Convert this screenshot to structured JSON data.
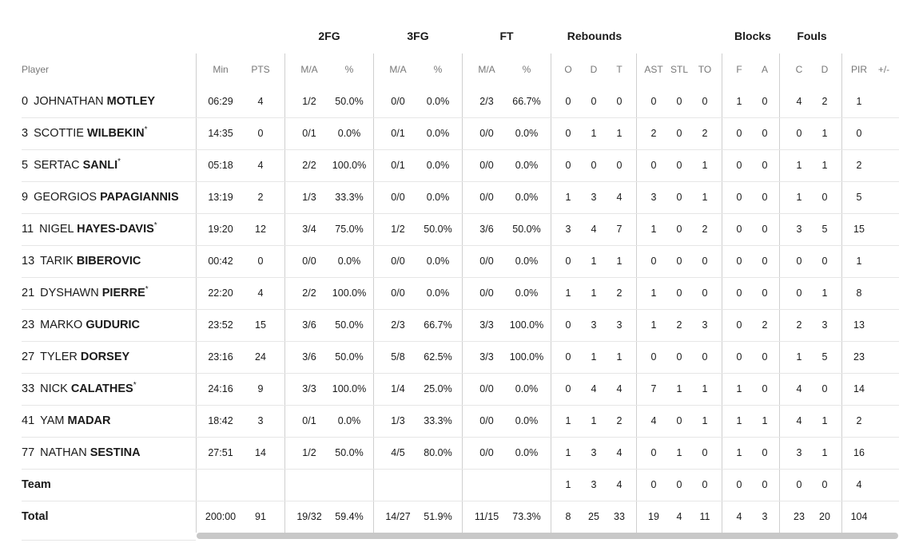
{
  "group_headers": {
    "fg2": "2FG",
    "fg3": "3FG",
    "ft": "FT",
    "rebounds": "Rebounds",
    "blocks": "Blocks",
    "fouls": "Fouls"
  },
  "columns": [
    "Player",
    "Min",
    "PTS",
    "M/A",
    "%",
    "M/A",
    "%",
    "M/A",
    "%",
    "O",
    "D",
    "T",
    "AST",
    "STL",
    "TO",
    "F",
    "A",
    "C",
    "D",
    "PIR",
    "+/-"
  ],
  "players": [
    {
      "num": "0",
      "first": "JOHNATHAN",
      "last": "MOTLEY",
      "star": "",
      "stats": [
        "06:29",
        "4",
        "1/2",
        "50.0%",
        "0/0",
        "0.0%",
        "2/3",
        "66.7%",
        "0",
        "0",
        "0",
        "0",
        "0",
        "0",
        "1",
        "0",
        "4",
        "2",
        "1",
        ""
      ]
    },
    {
      "num": "3",
      "first": "SCOTTIE",
      "last": "WILBEKIN",
      "star": "*",
      "stats": [
        "14:35",
        "0",
        "0/1",
        "0.0%",
        "0/1",
        "0.0%",
        "0/0",
        "0.0%",
        "0",
        "1",
        "1",
        "2",
        "0",
        "2",
        "0",
        "0",
        "0",
        "1",
        "0",
        ""
      ]
    },
    {
      "num": "5",
      "first": "SERTAC",
      "last": "SANLI",
      "star": "*",
      "stats": [
        "05:18",
        "4",
        "2/2",
        "100.0%",
        "0/1",
        "0.0%",
        "0/0",
        "0.0%",
        "0",
        "0",
        "0",
        "0",
        "0",
        "1",
        "0",
        "0",
        "1",
        "1",
        "2",
        ""
      ]
    },
    {
      "num": "9",
      "first": "GEORGIOS",
      "last": "PAPAGIANNIS",
      "star": "",
      "stats": [
        "13:19",
        "2",
        "1/3",
        "33.3%",
        "0/0",
        "0.0%",
        "0/0",
        "0.0%",
        "1",
        "3",
        "4",
        "3",
        "0",
        "1",
        "0",
        "0",
        "1",
        "0",
        "5",
        ""
      ]
    },
    {
      "num": "11",
      "first": "NIGEL",
      "last": "HAYES-DAVIS",
      "star": "*",
      "stats": [
        "19:20",
        "12",
        "3/4",
        "75.0%",
        "1/2",
        "50.0%",
        "3/6",
        "50.0%",
        "3",
        "4",
        "7",
        "1",
        "0",
        "2",
        "0",
        "0",
        "3",
        "5",
        "15",
        ""
      ]
    },
    {
      "num": "13",
      "first": "TARIK",
      "last": "BIBEROVIC",
      "star": "",
      "stats": [
        "00:42",
        "0",
        "0/0",
        "0.0%",
        "0/0",
        "0.0%",
        "0/0",
        "0.0%",
        "0",
        "1",
        "1",
        "0",
        "0",
        "0",
        "0",
        "0",
        "0",
        "0",
        "1",
        ""
      ]
    },
    {
      "num": "21",
      "first": "DYSHAWN",
      "last": "PIERRE",
      "star": "*",
      "stats": [
        "22:20",
        "4",
        "2/2",
        "100.0%",
        "0/0",
        "0.0%",
        "0/0",
        "0.0%",
        "1",
        "1",
        "2",
        "1",
        "0",
        "0",
        "0",
        "0",
        "0",
        "1",
        "8",
        ""
      ]
    },
    {
      "num": "23",
      "first": "MARKO",
      "last": "GUDURIC",
      "star": "",
      "stats": [
        "23:52",
        "15",
        "3/6",
        "50.0%",
        "2/3",
        "66.7%",
        "3/3",
        "100.0%",
        "0",
        "3",
        "3",
        "1",
        "2",
        "3",
        "0",
        "2",
        "2",
        "3",
        "13",
        ""
      ]
    },
    {
      "num": "27",
      "first": "TYLER",
      "last": "DORSEY",
      "star": "",
      "stats": [
        "23:16",
        "24",
        "3/6",
        "50.0%",
        "5/8",
        "62.5%",
        "3/3",
        "100.0%",
        "0",
        "1",
        "1",
        "0",
        "0",
        "0",
        "0",
        "0",
        "1",
        "5",
        "23",
        ""
      ]
    },
    {
      "num": "33",
      "first": "NICK",
      "last": "CALATHES",
      "star": "*",
      "stats": [
        "24:16",
        "9",
        "3/3",
        "100.0%",
        "1/4",
        "25.0%",
        "0/0",
        "0.0%",
        "0",
        "4",
        "4",
        "7",
        "1",
        "1",
        "1",
        "0",
        "4",
        "0",
        "14",
        ""
      ]
    },
    {
      "num": "41",
      "first": "YAM",
      "last": "MADAR",
      "star": "",
      "stats": [
        "18:42",
        "3",
        "0/1",
        "0.0%",
        "1/3",
        "33.3%",
        "0/0",
        "0.0%",
        "1",
        "1",
        "2",
        "4",
        "0",
        "1",
        "1",
        "1",
        "4",
        "1",
        "2",
        ""
      ]
    },
    {
      "num": "77",
      "first": "NATHAN",
      "last": "SESTINA",
      "star": "",
      "stats": [
        "27:51",
        "14",
        "1/2",
        "50.0%",
        "4/5",
        "80.0%",
        "0/0",
        "0.0%",
        "1",
        "3",
        "4",
        "0",
        "1",
        "0",
        "1",
        "0",
        "3",
        "1",
        "16",
        ""
      ]
    }
  ],
  "team": {
    "label": "Team",
    "stats": [
      "",
      "",
      "",
      "",
      "",
      "",
      "",
      "",
      "1",
      "3",
      "4",
      "0",
      "0",
      "0",
      "0",
      "0",
      "0",
      "0",
      "4",
      ""
    ]
  },
  "total": {
    "label": "Total",
    "stats": [
      "200:00",
      "91",
      "19/32",
      "59.4%",
      "14/27",
      "51.9%",
      "11/15",
      "73.3%",
      "8",
      "25",
      "33",
      "19",
      "4",
      "11",
      "4",
      "3",
      "23",
      "20",
      "104",
      ""
    ]
  }
}
